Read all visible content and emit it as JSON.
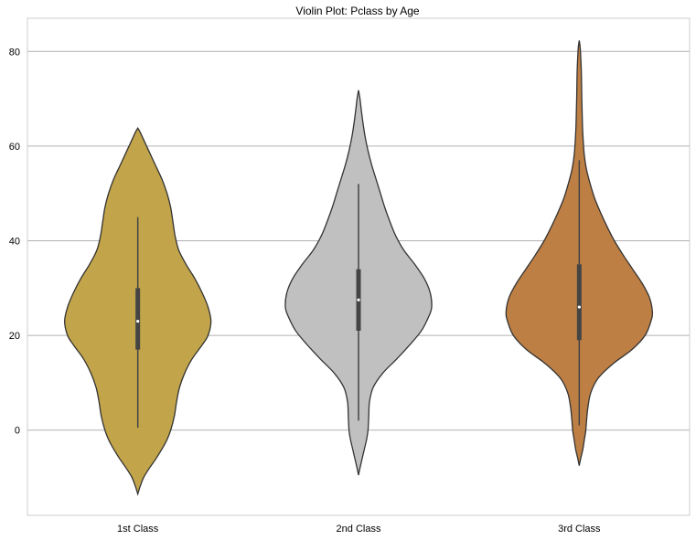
{
  "chart_data": {
    "type": "violin",
    "title": "Violin Plot: Pclass by Age",
    "xlabel": "",
    "ylabel": "",
    "categories": [
      "1st Class",
      "2nd Class",
      "3rd Class"
    ],
    "ylim": [
      -18,
      87
    ],
    "yticks": [
      0,
      20,
      40,
      60,
      80
    ],
    "grid": "y",
    "series": [
      {
        "category": "1st Class",
        "color": "#c2a44a",
        "whisker": [
          0.5,
          45
        ],
        "q1": 17,
        "median": 23,
        "q3": 30,
        "extent": [
          -13.5,
          63.8
        ],
        "profile": [
          [
            -13.5,
            0
          ],
          [
            -12,
            0.03
          ],
          [
            -10,
            0.08
          ],
          [
            -8,
            0.16
          ],
          [
            -6,
            0.25
          ],
          [
            -4,
            0.33
          ],
          [
            -2,
            0.4
          ],
          [
            0,
            0.45
          ],
          [
            3,
            0.5
          ],
          [
            6,
            0.53
          ],
          [
            9,
            0.57
          ],
          [
            12,
            0.64
          ],
          [
            15,
            0.74
          ],
          [
            18,
            0.88
          ],
          [
            20,
            0.96
          ],
          [
            23,
            1.0
          ],
          [
            26,
            0.96
          ],
          [
            29,
            0.88
          ],
          [
            32,
            0.78
          ],
          [
            35,
            0.66
          ],
          [
            38,
            0.56
          ],
          [
            41,
            0.51
          ],
          [
            44,
            0.48
          ],
          [
            47,
            0.45
          ],
          [
            50,
            0.4
          ],
          [
            53,
            0.33
          ],
          [
            56,
            0.24
          ],
          [
            59,
            0.15
          ],
          [
            61,
            0.09
          ],
          [
            63,
            0.03
          ],
          [
            63.8,
            0
          ]
        ]
      },
      {
        "category": "2nd Class",
        "color": "#c0c0c0",
        "whisker": [
          2,
          52
        ],
        "q1": 21,
        "median": 27.5,
        "q3": 34,
        "extent": [
          -9.5,
          71.8
        ],
        "profile": [
          [
            -9.5,
            0
          ],
          [
            -8,
            0.02
          ],
          [
            -6,
            0.05
          ],
          [
            -4,
            0.08
          ],
          [
            -2,
            0.11
          ],
          [
            0,
            0.13
          ],
          [
            3,
            0.14
          ],
          [
            6,
            0.15
          ],
          [
            9,
            0.2
          ],
          [
            12,
            0.33
          ],
          [
            15,
            0.52
          ],
          [
            18,
            0.7
          ],
          [
            21,
            0.86
          ],
          [
            24,
            0.96
          ],
          [
            26,
            1.0
          ],
          [
            29,
            0.98
          ],
          [
            32,
            0.9
          ],
          [
            35,
            0.77
          ],
          [
            38,
            0.62
          ],
          [
            41,
            0.51
          ],
          [
            44,
            0.43
          ],
          [
            47,
            0.36
          ],
          [
            50,
            0.3
          ],
          [
            53,
            0.24
          ],
          [
            56,
            0.18
          ],
          [
            59,
            0.13
          ],
          [
            62,
            0.09
          ],
          [
            65,
            0.06
          ],
          [
            68,
            0.035
          ],
          [
            70,
            0.02
          ],
          [
            71.8,
            0
          ]
        ]
      },
      {
        "category": "3rd Class",
        "color": "#bd7f44",
        "whisker": [
          1,
          57
        ],
        "q1": 19,
        "median": 26,
        "q3": 35,
        "extent": [
          -7.5,
          82.3
        ],
        "profile": [
          [
            -7.5,
            0
          ],
          [
            -6,
            0.02
          ],
          [
            -4,
            0.05
          ],
          [
            -2,
            0.07
          ],
          [
            0,
            0.09
          ],
          [
            2,
            0.1
          ],
          [
            5,
            0.12
          ],
          [
            8,
            0.16
          ],
          [
            11,
            0.26
          ],
          [
            14,
            0.46
          ],
          [
            17,
            0.72
          ],
          [
            20,
            0.9
          ],
          [
            23,
            0.98
          ],
          [
            25,
            1.0
          ],
          [
            28,
            0.96
          ],
          [
            31,
            0.86
          ],
          [
            34,
            0.73
          ],
          [
            37,
            0.6
          ],
          [
            40,
            0.48
          ],
          [
            43,
            0.38
          ],
          [
            46,
            0.29
          ],
          [
            49,
            0.21
          ],
          [
            52,
            0.15
          ],
          [
            55,
            0.1
          ],
          [
            58,
            0.07
          ],
          [
            61,
            0.055
          ],
          [
            64,
            0.045
          ],
          [
            67,
            0.04
          ],
          [
            70,
            0.035
          ],
          [
            73,
            0.032
          ],
          [
            76,
            0.028
          ],
          [
            79,
            0.02
          ],
          [
            81,
            0.012
          ],
          [
            82.3,
            0
          ]
        ]
      }
    ]
  }
}
